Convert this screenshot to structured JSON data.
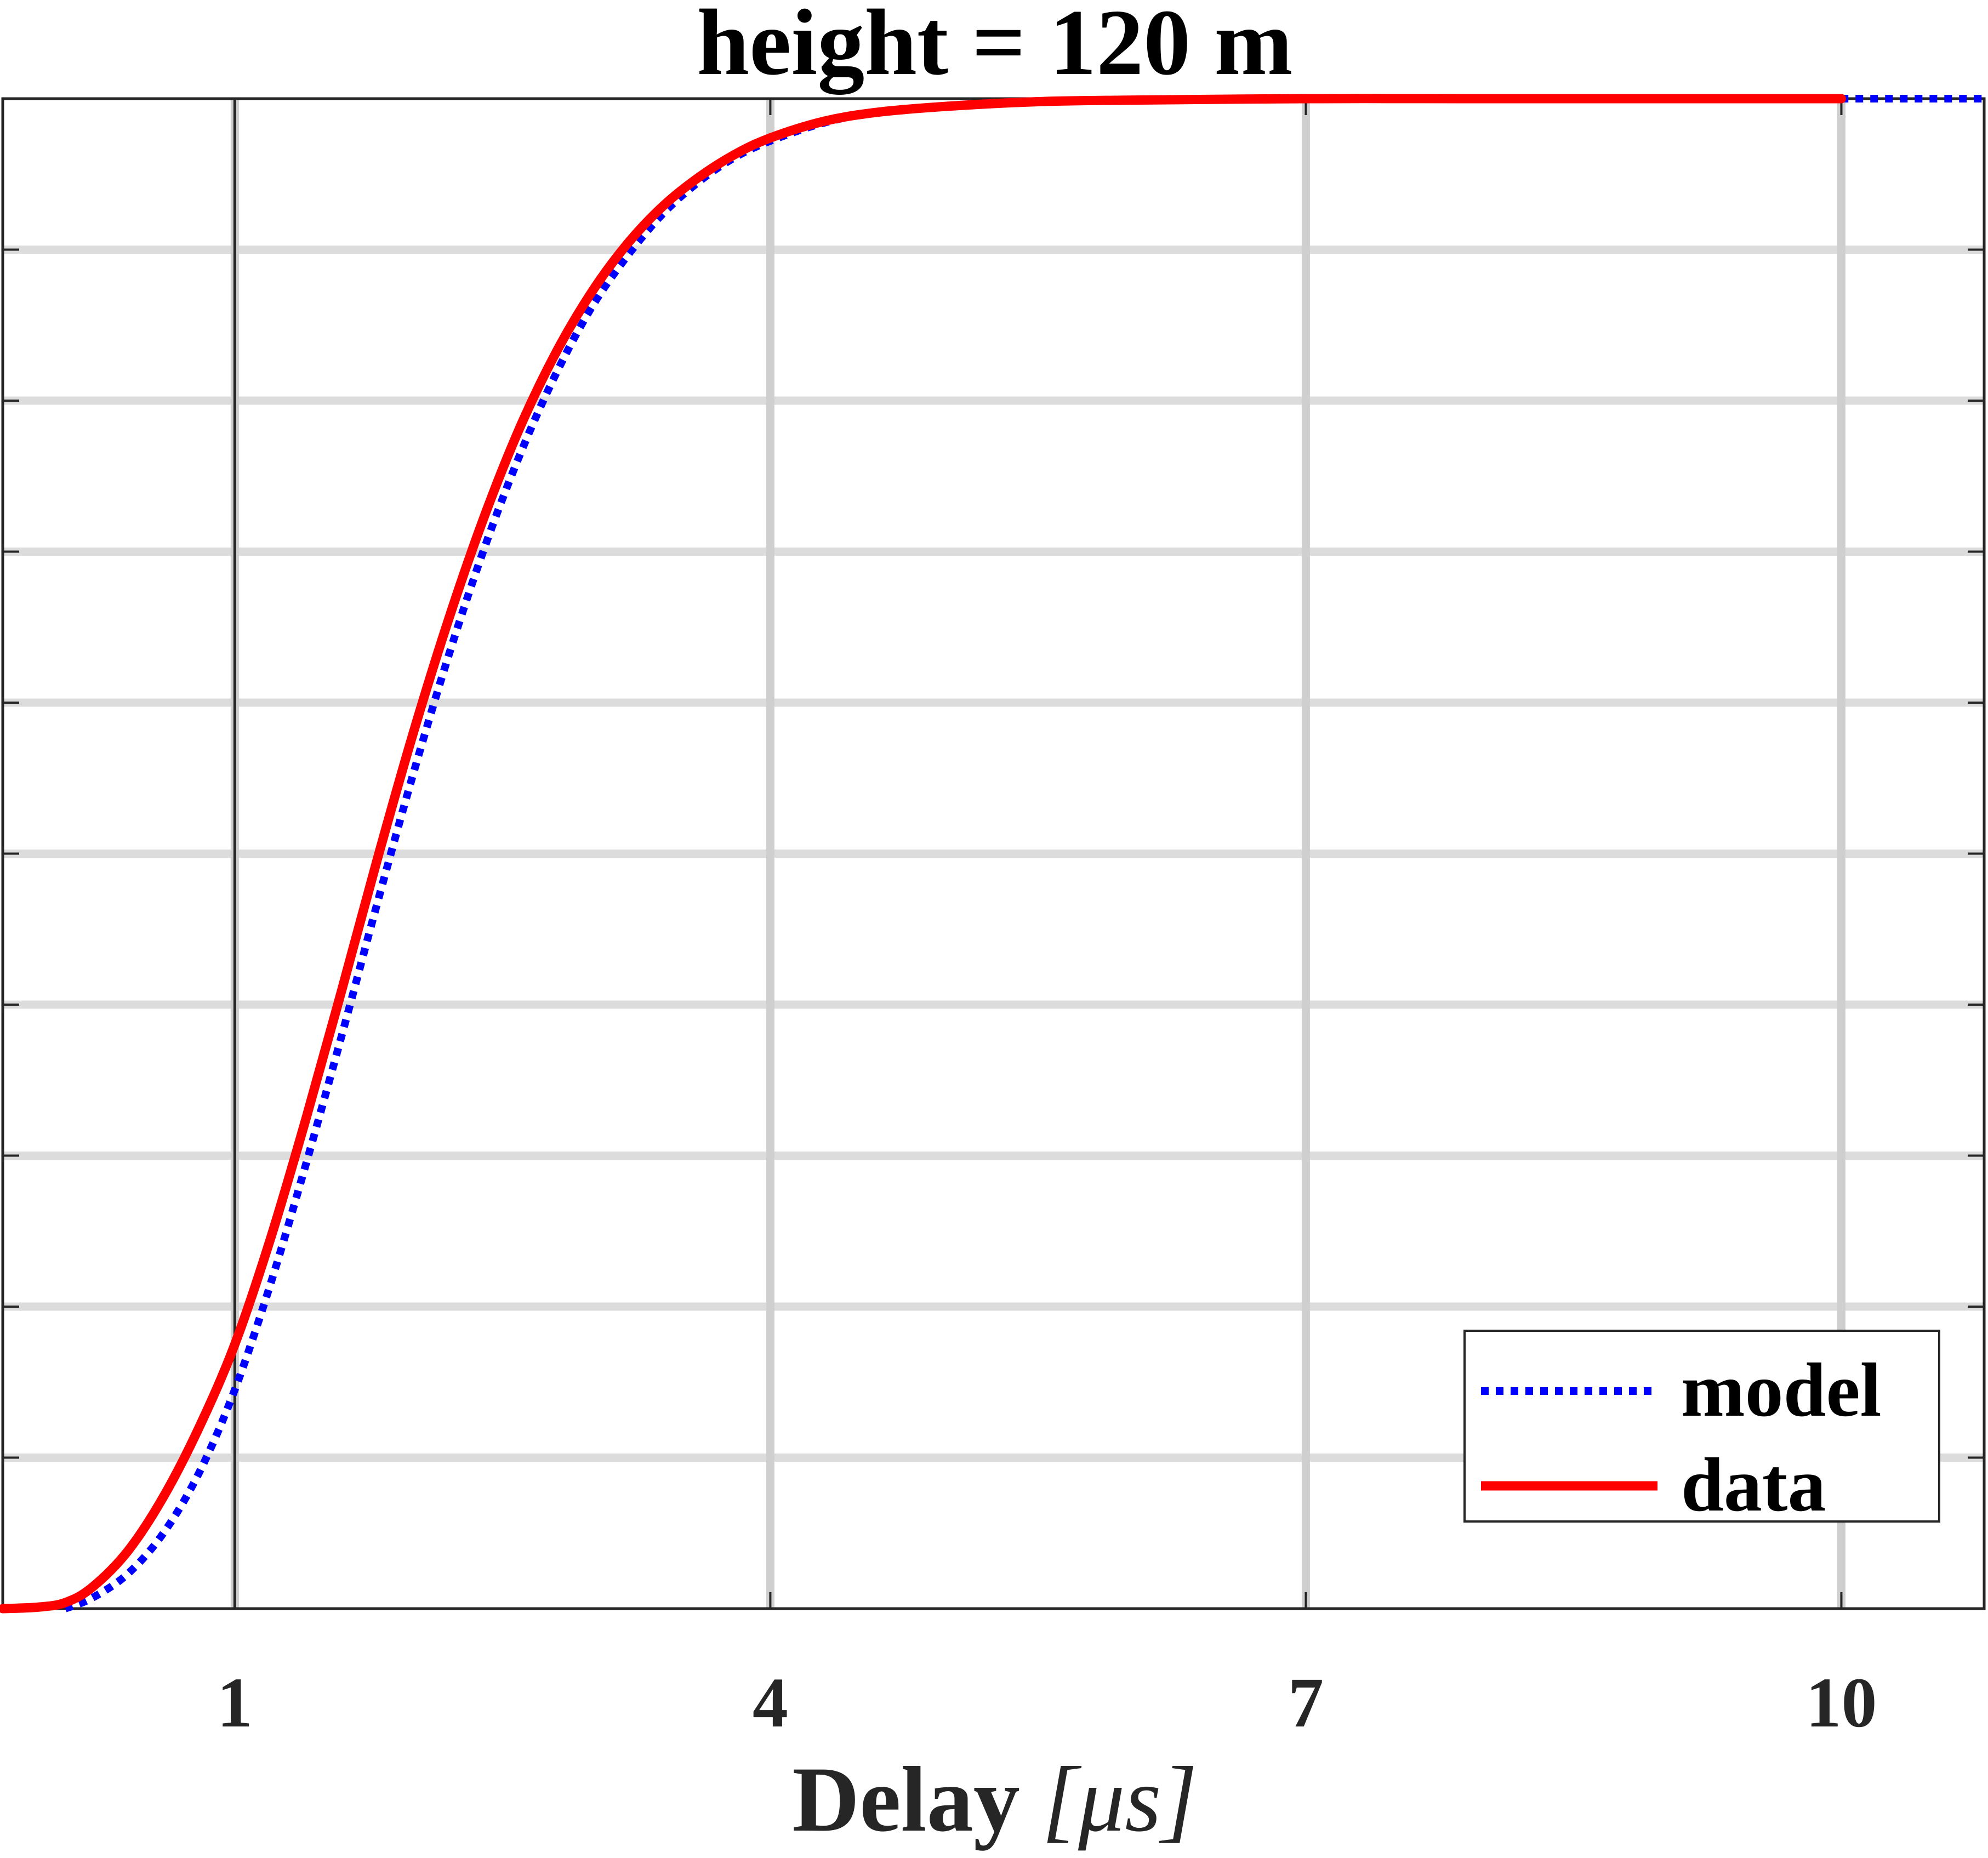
{
  "chart_data": {
    "type": "line",
    "title": "height = 120 m",
    "xlabel": "Delay",
    "xlabel_unit": "[μs]",
    "ylabel": "",
    "xlim": [
      -0.3,
      10.8
    ],
    "ylim": [
      0,
      1
    ],
    "x_ticks": [
      1,
      4,
      7,
      10
    ],
    "x_tick_labels": [
      "1",
      "4",
      "7",
      "10"
    ],
    "y_gridlines": [
      0.1,
      0.2,
      0.3,
      0.4,
      0.5,
      0.6,
      0.7,
      0.8,
      0.9
    ],
    "grid": true,
    "legend_position": "bottom-right",
    "series": [
      {
        "name": "model",
        "color": "#0000ff",
        "style": "dotted",
        "x": [
          0.05,
          0.2,
          0.4,
          0.6,
          0.8,
          1.0,
          1.2,
          1.4,
          1.6,
          1.8,
          2.0,
          2.2,
          2.4,
          2.6,
          2.8,
          3.0,
          3.2,
          3.4,
          3.6,
          3.8,
          4.0,
          4.3,
          4.6,
          5.0,
          5.5,
          6.0,
          7.0,
          8.0,
          9.0,
          10.0,
          10.8
        ],
        "y": [
          0.0,
          0.007,
          0.023,
          0.05,
          0.09,
          0.145,
          0.215,
          0.295,
          0.38,
          0.468,
          0.553,
          0.632,
          0.703,
          0.765,
          0.818,
          0.862,
          0.896,
          0.924,
          0.945,
          0.961,
          0.972,
          0.984,
          0.991,
          0.995,
          0.998,
          0.999,
          1.0,
          1.0,
          1.0,
          1.0,
          1.0
        ]
      },
      {
        "name": "data",
        "color": "#ff0000",
        "style": "solid",
        "x": [
          -0.3,
          -0.1,
          0.05,
          0.2,
          0.4,
          0.6,
          0.8,
          1.0,
          1.2,
          1.4,
          1.6,
          1.8,
          2.0,
          2.2,
          2.4,
          2.6,
          2.8,
          3.0,
          3.2,
          3.4,
          3.6,
          3.8,
          4.0,
          4.3,
          4.6,
          5.0,
          5.5,
          6.0,
          7.0,
          8.0,
          9.0,
          10.0
        ],
        "y": [
          0.0,
          0.001,
          0.004,
          0.014,
          0.038,
          0.074,
          0.12,
          0.175,
          0.245,
          0.325,
          0.41,
          0.497,
          0.58,
          0.656,
          0.724,
          0.783,
          0.832,
          0.872,
          0.904,
          0.929,
          0.948,
          0.963,
          0.974,
          0.985,
          0.991,
          0.995,
          0.998,
          0.999,
          1.0,
          1.0,
          1.0,
          1.0
        ]
      }
    ]
  }
}
